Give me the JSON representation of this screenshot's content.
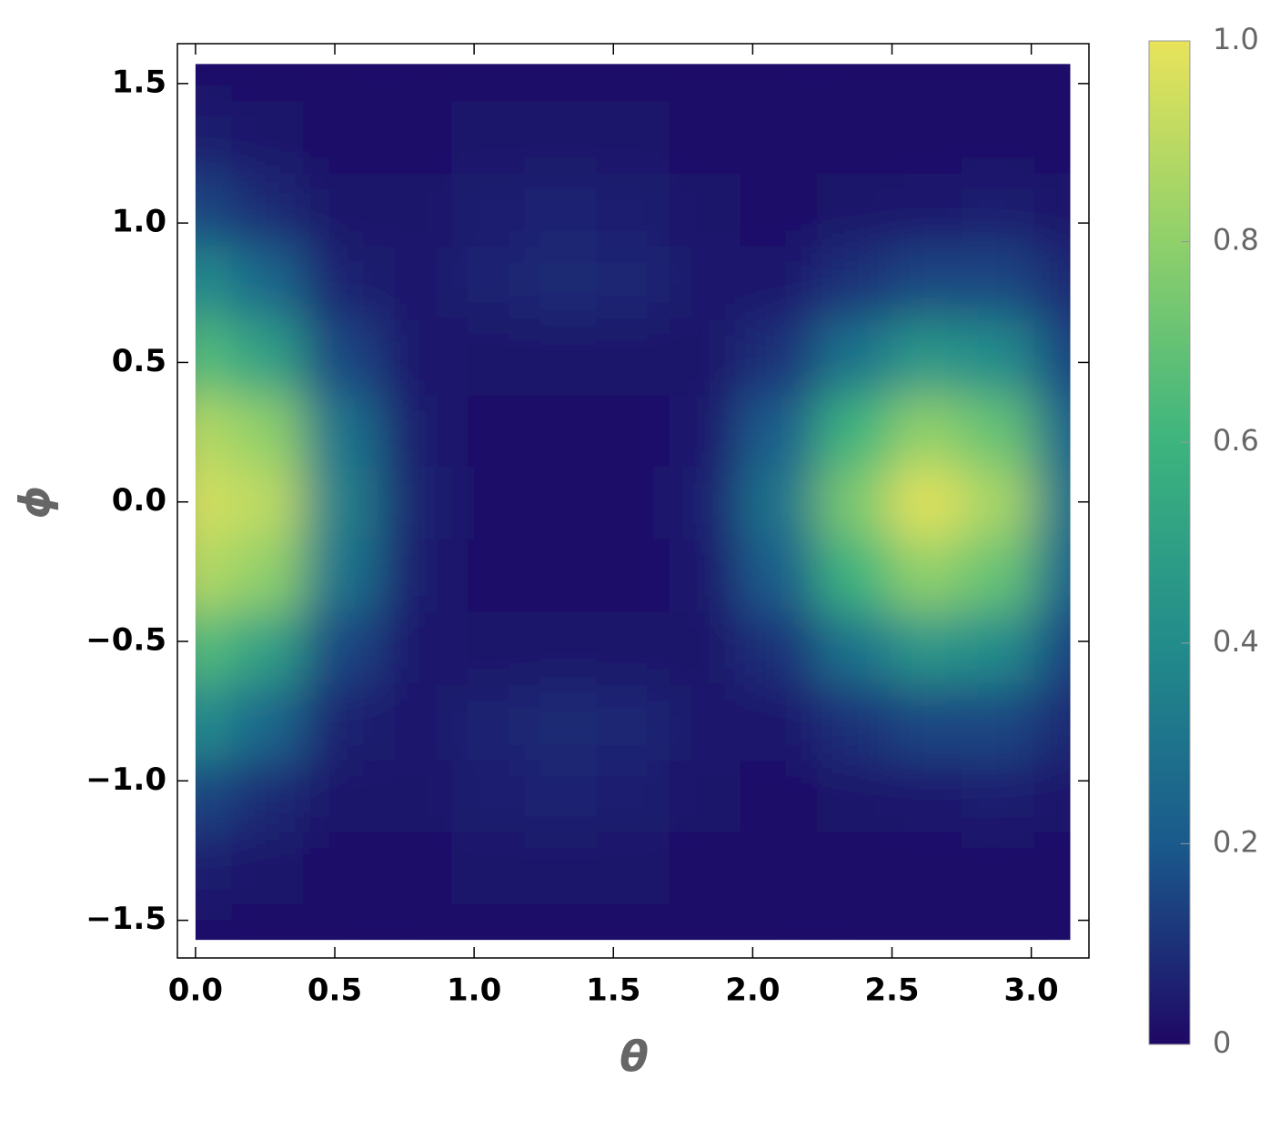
{
  "chart_data": {
    "type": "heatmap",
    "x_label": "θ",
    "y_label": "ϕ",
    "x": [
      0,
      0.26,
      0.52,
      0.79,
      1.05,
      1.31,
      1.57,
      1.83,
      2.09,
      2.36,
      2.62,
      2.88,
      3.14
    ],
    "y": [
      -1.57,
      -1.31,
      -1.05,
      -0.79,
      -0.52,
      -0.26,
      0,
      0.26,
      0.52,
      0.79,
      1.05,
      1.31,
      1.57
    ],
    "z": [
      [
        0.02,
        0.02,
        0.02,
        0.02,
        0.02,
        0.02,
        0.02,
        0.02,
        0.02,
        0.02,
        0.02,
        0.02,
        0.02
      ],
      [
        0.05,
        0.03,
        0.02,
        0.02,
        0.03,
        0.03,
        0.03,
        0.02,
        0.02,
        0.02,
        0.02,
        0.02,
        0.02
      ],
      [
        0.15,
        0.08,
        0.03,
        0.03,
        0.05,
        0.06,
        0.05,
        0.03,
        0.02,
        0.03,
        0.04,
        0.05,
        0.03
      ],
      [
        0.4,
        0.25,
        0.06,
        0.04,
        0.06,
        0.08,
        0.07,
        0.04,
        0.04,
        0.1,
        0.15,
        0.15,
        0.08
      ],
      [
        0.65,
        0.5,
        0.15,
        0.04,
        0.03,
        0.03,
        0.03,
        0.03,
        0.1,
        0.3,
        0.45,
        0.4,
        0.15
      ],
      [
        0.88,
        0.8,
        0.3,
        0.05,
        0.02,
        0.02,
        0.02,
        0.04,
        0.22,
        0.6,
        0.8,
        0.7,
        0.25
      ],
      [
        0.95,
        0.9,
        0.35,
        0.06,
        0.02,
        0.02,
        0.02,
        0.05,
        0.3,
        0.75,
        0.98,
        0.85,
        0.3
      ],
      [
        0.88,
        0.8,
        0.3,
        0.05,
        0.02,
        0.02,
        0.02,
        0.04,
        0.22,
        0.6,
        0.8,
        0.7,
        0.25
      ],
      [
        0.65,
        0.5,
        0.15,
        0.04,
        0.03,
        0.03,
        0.03,
        0.03,
        0.1,
        0.3,
        0.45,
        0.4,
        0.15
      ],
      [
        0.4,
        0.25,
        0.06,
        0.04,
        0.06,
        0.08,
        0.07,
        0.04,
        0.04,
        0.1,
        0.15,
        0.15,
        0.08
      ],
      [
        0.15,
        0.08,
        0.03,
        0.03,
        0.05,
        0.06,
        0.05,
        0.03,
        0.02,
        0.03,
        0.04,
        0.05,
        0.03
      ],
      [
        0.05,
        0.03,
        0.02,
        0.02,
        0.03,
        0.03,
        0.03,
        0.02,
        0.02,
        0.02,
        0.02,
        0.02,
        0.02
      ],
      [
        0.02,
        0.02,
        0.02,
        0.02,
        0.02,
        0.02,
        0.02,
        0.02,
        0.02,
        0.02,
        0.02,
        0.02,
        0.02
      ]
    ],
    "xlim": [
      -0.065,
      3.207
    ],
    "ylim": [
      -1.635,
      1.643
    ],
    "xticks": [
      {
        "value": 0,
        "label": "0.0"
      },
      0.5,
      {
        "value": 1,
        "label": "1.0"
      },
      1.5,
      {
        "value": 2,
        "label": "2.0"
      },
      2.5,
      {
        "value": 3,
        "label": "3.0"
      }
    ],
    "yticks": [
      {
        "value": -1.5,
        "label": "−1.5"
      },
      {
        "value": -1,
        "label": "−1.0"
      },
      {
        "value": -0.5,
        "label": "−0.5"
      },
      {
        "value": 0,
        "label": "0.0"
      },
      0.5,
      {
        "value": 1,
        "label": "1.0"
      },
      1.5
    ],
    "colorscale": [
      [
        0,
        "#1f0865"
      ],
      [
        0.2,
        "#1a5a8c"
      ],
      [
        0.4,
        "#228c8b"
      ],
      [
        0.6,
        "#3db47e"
      ],
      [
        0.8,
        "#8fd06b"
      ],
      [
        1,
        "#e8e35a"
      ]
    ],
    "zlim": [
      0,
      1
    ],
    "zticks": [
      0,
      0.2,
      0.4,
      0.6,
      0.8,
      {
        "value": 1,
        "label": "1.0"
      }
    ]
  }
}
